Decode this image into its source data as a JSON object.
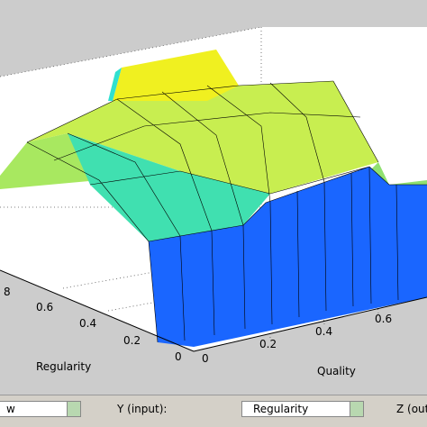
{
  "plot": {
    "y_ticks": [
      "8",
      "0.6",
      "0.4",
      "0.2",
      "0"
    ],
    "y_label": "Regularity",
    "x_ticks": [
      "0",
      "0.2",
      "0.4",
      "0.6"
    ],
    "x_label": "Quality"
  },
  "controls": {
    "x_select": "w",
    "y_label": "Y (input):",
    "y_select": "Regularity",
    "z_label": "Z (outp"
  }
}
